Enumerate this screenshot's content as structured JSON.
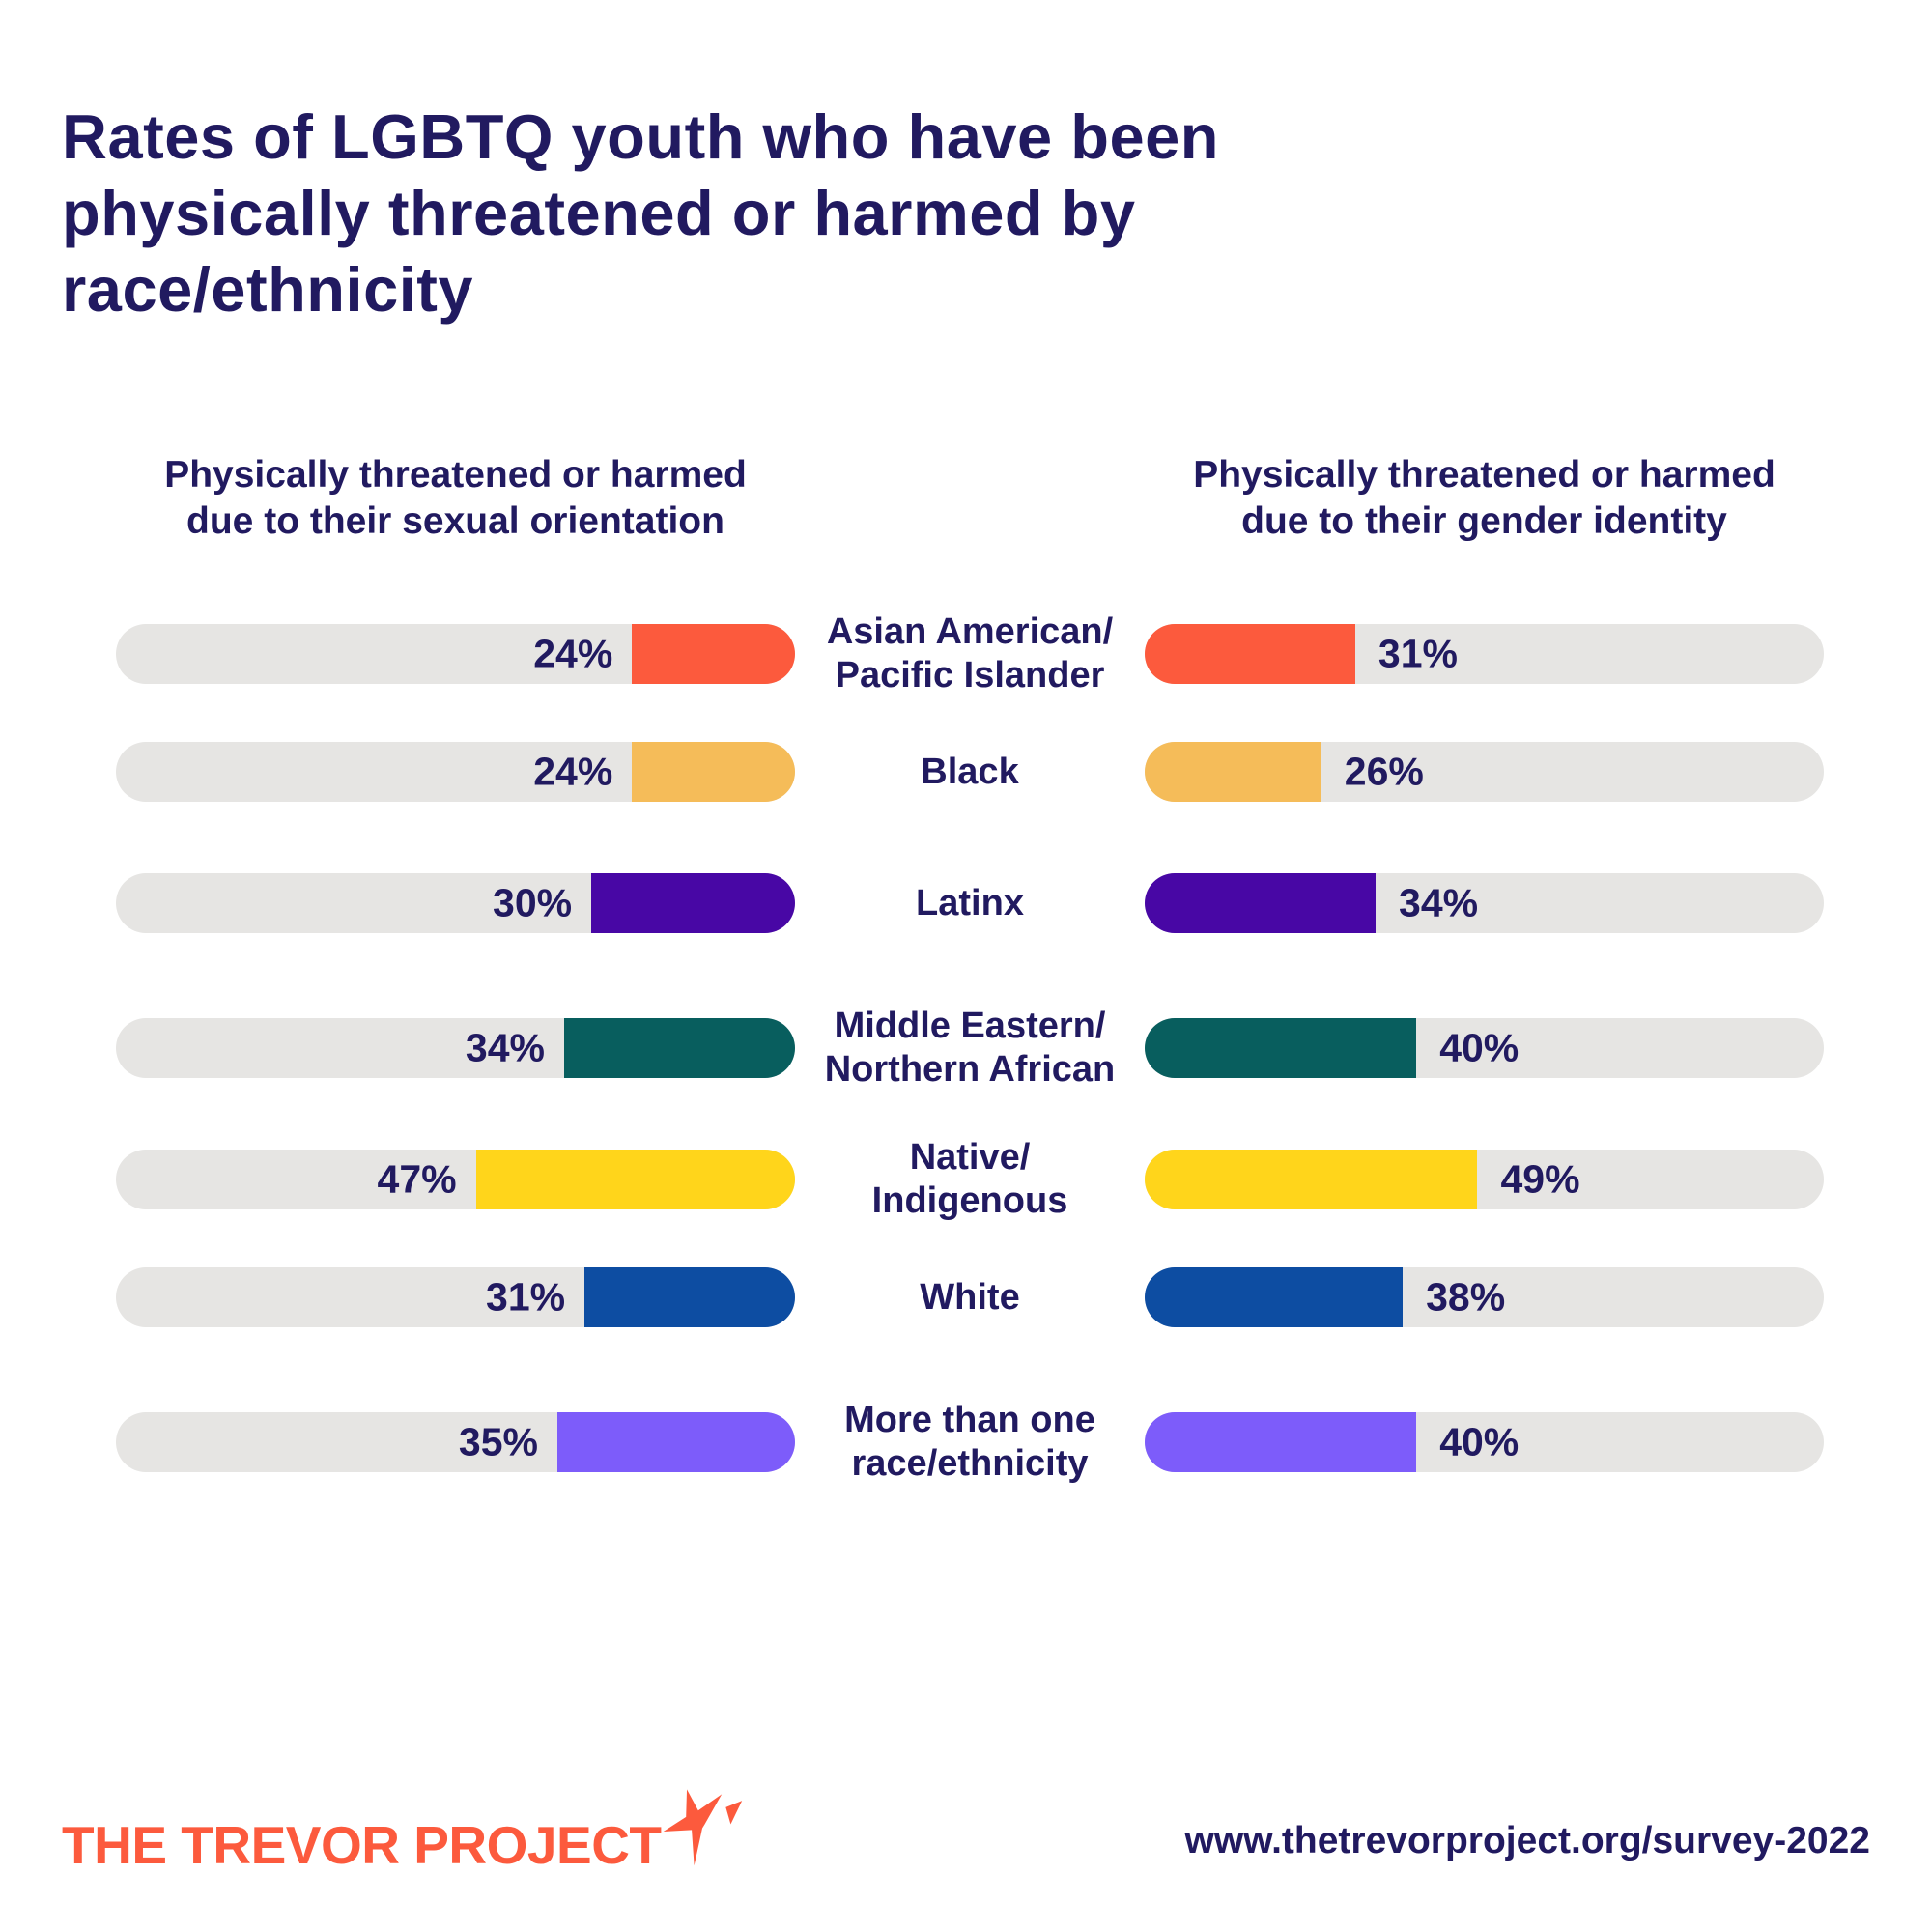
{
  "title": "Rates of LGBTQ youth who have been\nphysically threatened or harmed by\nrace/ethnicity",
  "columns": {
    "left": {
      "header": "Physically threatened or harmed\ndue to their sexual orientation"
    },
    "right": {
      "header": "Physically threatened or harmed\ndue to their gender identity"
    }
  },
  "chart_data": {
    "type": "bar",
    "orientation": "horizontal",
    "unit": "percent",
    "xlim": [
      0,
      100
    ],
    "grid": false,
    "categories": [
      "Asian American/Pacific Islander",
      "Black",
      "Latinx",
      "Middle Eastern/Northern African",
      "Native/Indigenous",
      "White",
      "More than one race/ethnicity"
    ],
    "series": [
      {
        "name": "Physically threatened or harmed due to their sexual orientation",
        "values": [
          24,
          24,
          30,
          34,
          47,
          31,
          35
        ]
      },
      {
        "name": "Physically threatened or harmed due to their gender identity",
        "values": [
          31,
          26,
          34,
          40,
          49,
          38,
          40
        ]
      }
    ],
    "bar_colors": [
      "#FC5A3D",
      "#F5BC59",
      "#4807A5",
      "#085E5E",
      "#FFD51B",
      "#0D4DA2",
      "#7D5CFA"
    ],
    "track_color": "#E6E5E3",
    "value_label_color": "#211A60"
  },
  "rows": [
    {
      "label": "Asian American/\nPacific Islander",
      "left_value": 24,
      "left_label": "24%",
      "right_value": 31,
      "right_label": "31%",
      "color": "#FC5A3D"
    },
    {
      "label": "Black",
      "left_value": 24,
      "left_label": "24%",
      "right_value": 26,
      "right_label": "26%",
      "color": "#F5BC59"
    },
    {
      "label": "Latinx",
      "left_value": 30,
      "left_label": "30%",
      "right_value": 34,
      "right_label": "34%",
      "color": "#4807A5"
    },
    {
      "label": "Middle Eastern/\nNorthern African",
      "left_value": 34,
      "left_label": "34%",
      "right_value": 40,
      "right_label": "40%",
      "color": "#085E5E"
    },
    {
      "label": "Native/\nIndigenous",
      "left_value": 47,
      "left_label": "47%",
      "right_value": 49,
      "right_label": "49%",
      "color": "#FFD51B"
    },
    {
      "label": "White",
      "left_value": 31,
      "left_label": "31%",
      "right_value": 38,
      "right_label": "38%",
      "color": "#0D4DA2"
    },
    {
      "label": "More than one\nrace/ethnicity",
      "left_value": 35,
      "left_label": "35%",
      "right_value": 40,
      "right_label": "40%",
      "color": "#7D5CFA"
    }
  ],
  "footer": {
    "logo_text": "THE TREVOR PROJECT",
    "url": "www.thetrevorproject.org/survey-2022"
  },
  "colors": {
    "navy_text": "#211A60",
    "logo_orange": "#FC5A3D",
    "background": "#FFFFFF"
  }
}
